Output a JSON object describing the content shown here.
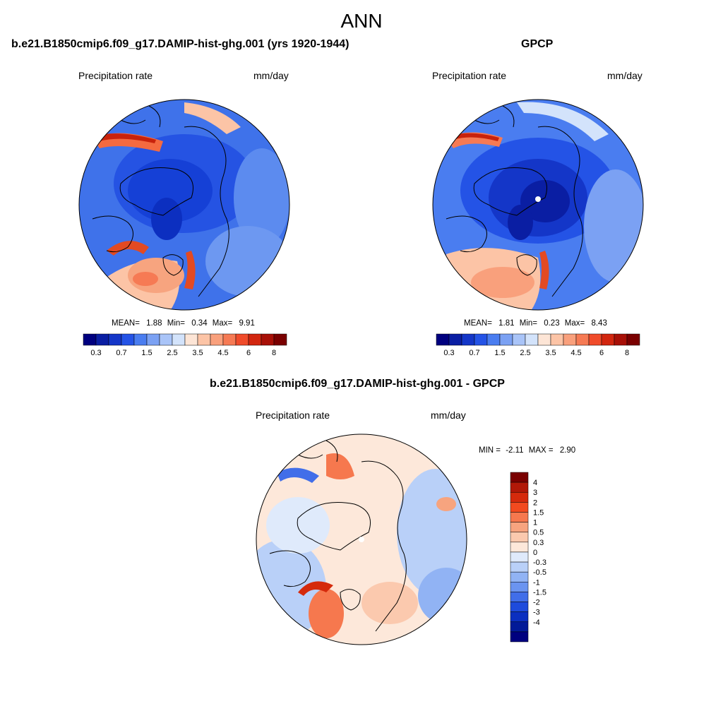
{
  "figure": {
    "season_title": "ANN"
  },
  "panels": {
    "model": {
      "title": "b.e21.B1850cmip6.f09_g17.DAMIP-hist-ghg.001 (yrs 1920-1944)",
      "var_label": "Precipitation rate",
      "units_label": "mm/day",
      "stats": {
        "mean_label": "MEAN=",
        "mean": "1.88",
        "min_label": "Min=",
        "min": "0.34",
        "max_label": "Max=",
        "max": "9.91"
      }
    },
    "obs": {
      "title": "GPCP",
      "var_label": "Precipitation rate",
      "units_label": "mm/day",
      "stats": {
        "mean_label": "MEAN=",
        "mean": "1.81",
        "min_label": "Min=",
        "min": "0.23",
        "max_label": "Max=",
        "max": "8.43"
      }
    },
    "diff": {
      "title": "b.e21.B1850cmip6.f09_g17.DAMIP-hist-ghg.001 - GPCP",
      "var_label": "Precipitation rate",
      "units_label": "mm/day",
      "stats": {
        "min_label": "MIN =",
        "min": "-2.11",
        "max_label": "MAX =",
        "max": "2.90"
      }
    }
  },
  "colorbars": {
    "abs": {
      "colors": [
        "#00007f",
        "#0a1ea3",
        "#1436c8",
        "#2453e6",
        "#4a7df0",
        "#7ba1f3",
        "#a9c4f8",
        "#d3e3fb",
        "#fde5d6",
        "#fcc4a6",
        "#f9a07c",
        "#f67a54",
        "#f04b2a",
        "#d2260f",
        "#a81007",
        "#7a0000"
      ],
      "tick_labels": [
        "0.3",
        "0.7",
        "1.5",
        "2.5",
        "3.5",
        "4.5",
        "6",
        "8"
      ]
    },
    "diff": {
      "colors": [
        "#7a0000",
        "#b11808",
        "#d52a0c",
        "#f24a1f",
        "#f6784e",
        "#f7a47f",
        "#fbc9ae",
        "#fde8da",
        "#dfeafb",
        "#b9d0f8",
        "#91b3f4",
        "#6b94f0",
        "#416ee9",
        "#1e4bdc",
        "#0b2fc0",
        "#021a98",
        "#00007f"
      ],
      "tick_labels": [
        "4",
        "3",
        "2",
        "1.5",
        "1",
        "0.5",
        "0.3",
        "0",
        "-0.3",
        "-0.5",
        "-1",
        "-1.5",
        "-2",
        "-3",
        "-4"
      ]
    }
  }
}
